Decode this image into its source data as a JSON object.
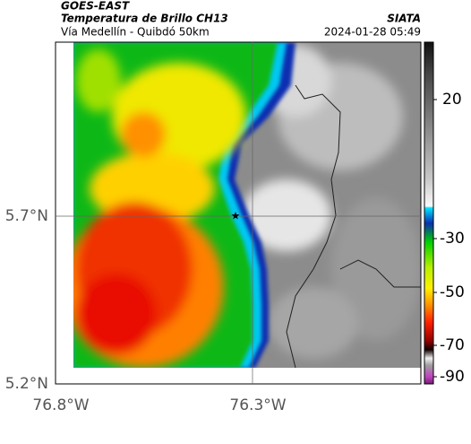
{
  "header": {
    "satellite": "GOES-EAST",
    "product": "Temperatura de Brillo CH13",
    "route": "Vía Medellín - Quibdó 50km",
    "source": "SIATA",
    "timestamp": "2024-01-28 05:49"
  },
  "axes": {
    "lat_labels": [
      "5.7°N",
      "5.2°N"
    ],
    "lon_labels": [
      "76.8°W",
      "76.3°W"
    ]
  },
  "colorbar": {
    "labels": [
      "20",
      "-30",
      "-50",
      "-70",
      "-90"
    ]
  }
}
